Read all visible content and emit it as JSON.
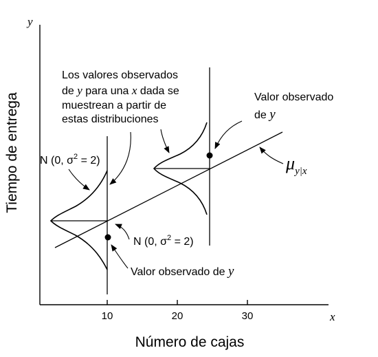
{
  "axes": {
    "y_title": "Tiempo de entrega",
    "x_title": "Número de cajas",
    "y_var": "y",
    "x_var": "x",
    "x_ticks": [
      "10",
      "20",
      "30"
    ]
  },
  "annotations": {
    "sampling_note": {
      "line1": "Los valores observados",
      "line2_pre": "de ",
      "line2_y": "y",
      "line2_mid": " para una ",
      "line2_x": "x",
      "line2_post": " dada se",
      "line3": "muestrean a partir de",
      "line4": "estas distribuciones"
    },
    "observed_right": {
      "line1": "Valor observado",
      "line2_pre": "de ",
      "line2_y": "y"
    },
    "observed_bottom": {
      "text": "Valor observado de ",
      "y": "y"
    },
    "dist_left": {
      "text": "N (0, σ",
      "sup": "2",
      "tail": " = 2)"
    },
    "dist_right": {
      "text": "N (0, σ",
      "sup": "2",
      "tail": " = 2)"
    },
    "regression_label": {
      "mu": "μ",
      "sub": "y|x"
    }
  }
}
